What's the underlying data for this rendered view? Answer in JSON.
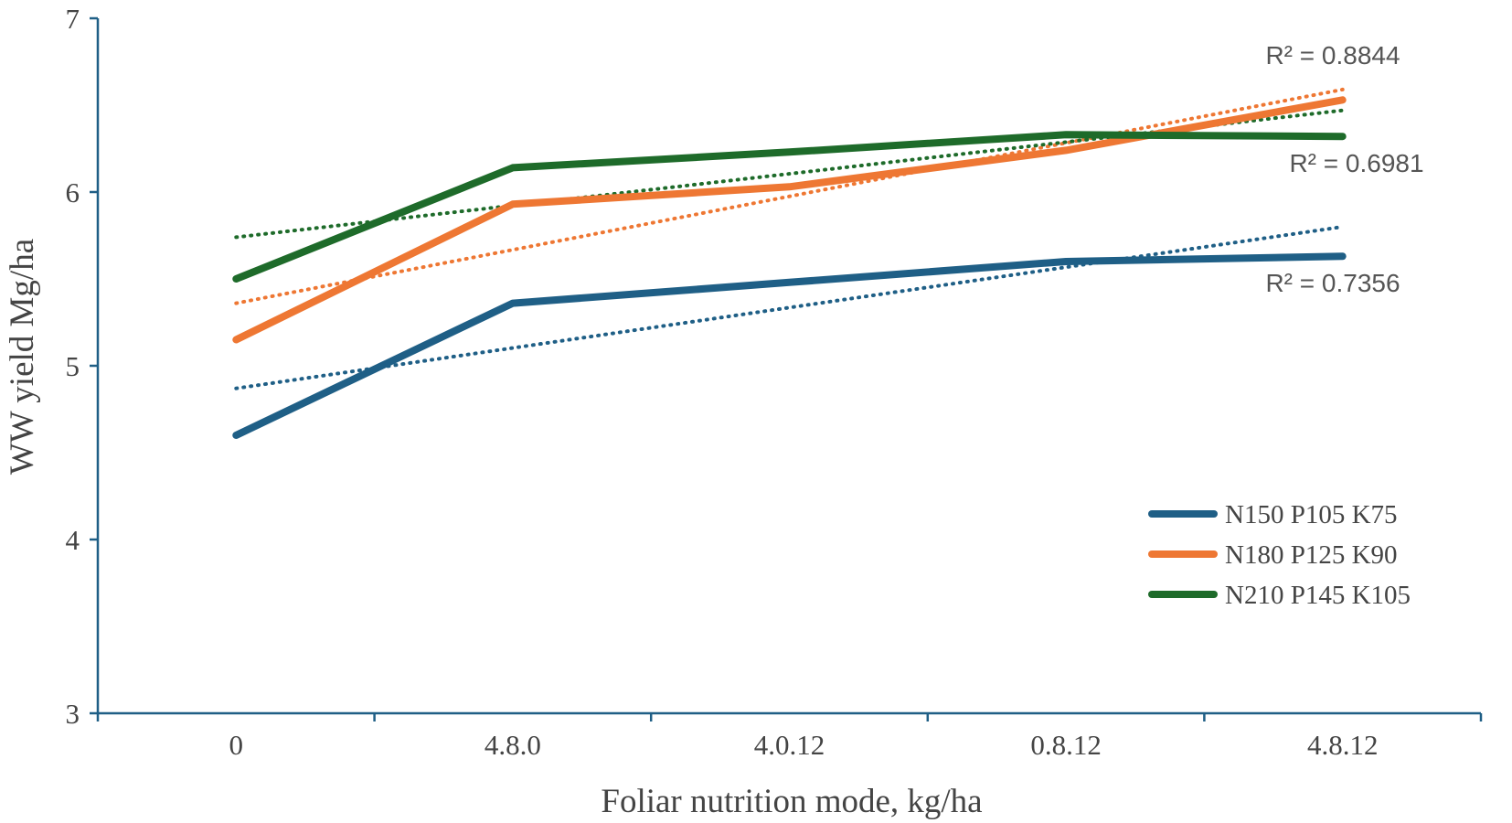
{
  "chart_data": {
    "type": "line",
    "categories": [
      "0",
      "4.8.0",
      "4.0.12",
      "0.8.12",
      "4.8.12"
    ],
    "xlabel": "Foliar nutrition mode, kg/ha",
    "ylabel": "WW yield Mg/ha",
    "ylim": [
      3,
      7
    ],
    "yticks": [
      "3",
      "4",
      "5",
      "6",
      "7"
    ],
    "grid": false,
    "legend_position": "bottom-right",
    "series": [
      {
        "name": "N150 P105 K75",
        "color": "#1f5f86",
        "values": [
          4.6,
          5.36,
          5.48,
          5.6,
          5.63
        ],
        "trendline": [
          4.87,
          5.1,
          5.33,
          5.57,
          5.8
        ],
        "r2_label": "R² = 0.7356"
      },
      {
        "name": "N180 P125 K90",
        "color": "#ee7733",
        "values": [
          5.15,
          5.93,
          6.03,
          6.24,
          6.53
        ],
        "trendline": [
          5.36,
          5.67,
          5.98,
          6.29,
          6.59
        ],
        "r2_label": "R² = 0.8844"
      },
      {
        "name": "N210 P145 K105",
        "color": "#1e6b2a",
        "values": [
          5.5,
          6.14,
          6.23,
          6.33,
          6.32
        ],
        "trendline": [
          5.74,
          5.92,
          6.1,
          6.29,
          6.47
        ],
        "r2_label": "R² = 0.6981"
      }
    ]
  }
}
